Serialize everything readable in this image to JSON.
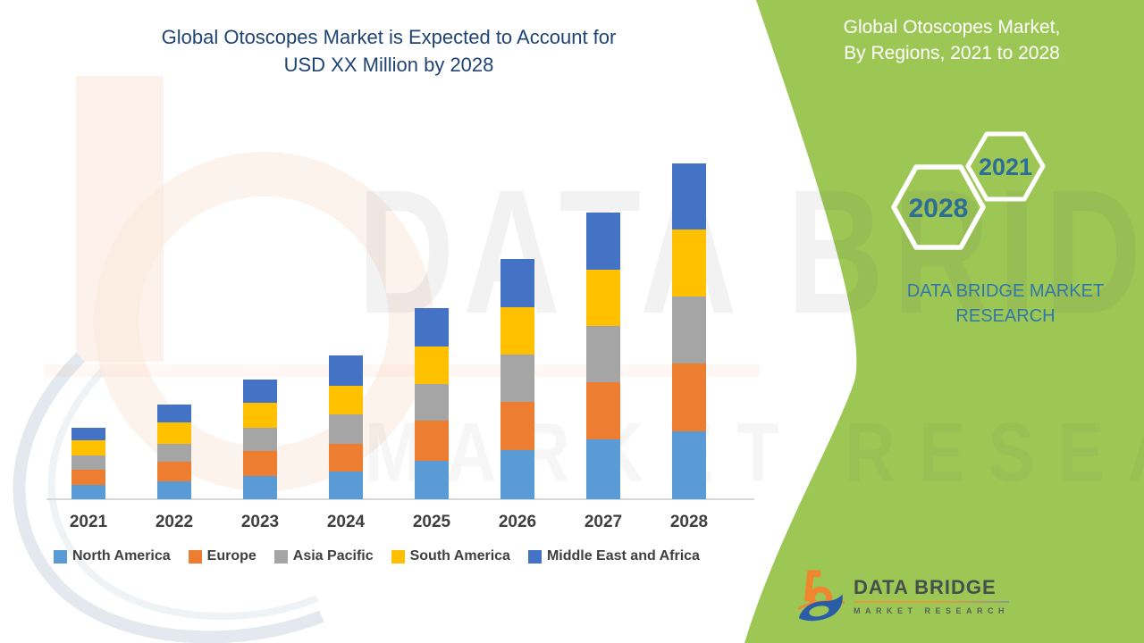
{
  "header": {
    "title_line1": "Global Otoscopes Market is Expected to Account for",
    "title_line2": "USD XX Million by 2028"
  },
  "side_panel": {
    "title_line1": "Global Otoscopes Market,",
    "title_line2": "By Regions, 2021 to 2028",
    "hexagon_year_start": "2028",
    "hexagon_year_end": "2021",
    "brand_line1": "DATA BRIDGE MARKET",
    "brand_line2": "RESEARCH",
    "background_color": "#9DC755",
    "title_color": "#ffffff",
    "hexagon_text_color": "#2D6E96",
    "brand_text_color": "#3377A8"
  },
  "watermark": {
    "line1": "DATA BRIDGE",
    "line2": "MARKET RESEARCH"
  },
  "footer_logo": {
    "name": "DATA BRIDGE",
    "tagline": "MARKET RESEARCH",
    "emblem_orange": "#F0862F",
    "emblem_blue": "#2B5CA8"
  },
  "chart_data": {
    "type": "bar",
    "stacked": true,
    "title": "Global Otoscopes Market is Expected to Account for USD XX Million by 2028",
    "subtitle": "Global Otoscopes Market, By Regions, 2021 to 2028",
    "categories": [
      "2021",
      "2022",
      "2023",
      "2024",
      "2025",
      "2026",
      "2027",
      "2028"
    ],
    "series": [
      {
        "name": "North America",
        "color": "#5B9BD5",
        "values": [
          16,
          20,
          26,
          31,
          43,
          55,
          67,
          76
        ]
      },
      {
        "name": "Europe",
        "color": "#ED7D31",
        "values": [
          17,
          22,
          28,
          31,
          45,
          54,
          64,
          76
        ]
      },
      {
        "name": "Asia Pacific",
        "color": "#A5A5A5",
        "values": [
          16,
          20,
          26,
          33,
          41,
          53,
          63,
          75
        ]
      },
      {
        "name": "South America",
        "color": "#FFC000",
        "values": [
          17,
          24,
          28,
          32,
          42,
          53,
          63,
          75
        ]
      },
      {
        "name": "Middle East and Africa",
        "color": "#4472C4",
        "values": [
          14,
          20,
          26,
          34,
          43,
          54,
          64,
          74
        ]
      }
    ],
    "totals": [
      80,
      106,
      134,
      161,
      214,
      269,
      321,
      376
    ],
    "value_unit": "relative units (y-axis not labeled; values shown as USD XX Million placeholder)",
    "ylim": [
      0,
      400
    ],
    "grid": false,
    "y_axis_visible": false,
    "legend_position": "bottom",
    "axis_line_color": "#D8D8D8",
    "category_label_color": "#3F3F3F"
  }
}
